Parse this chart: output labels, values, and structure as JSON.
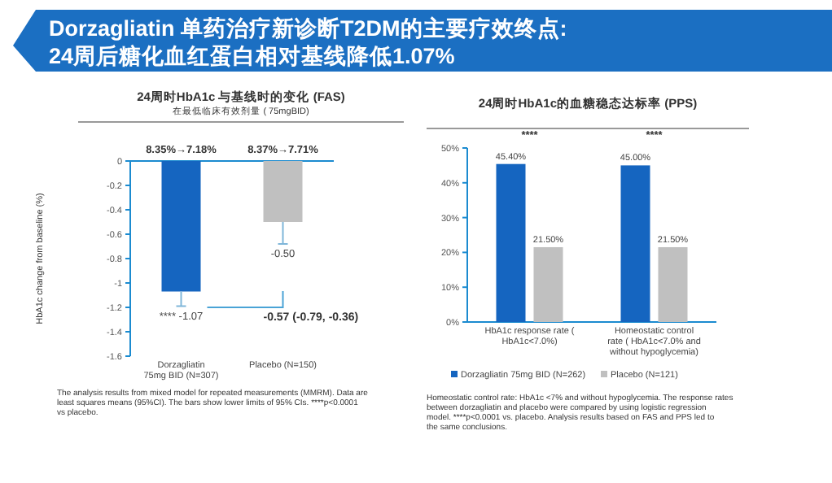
{
  "chart_data": [
    {
      "type": "other",
      "title": "Dorzagliatin 单药治疗新诊断T2DM的主要疗效终点:",
      "subtitle": "24周后糖化血红蛋白相对基线降低1.07%"
    },
    {
      "type": "bar",
      "title": "24周时HbA1c 与基线时的变化 (FAS)",
      "subtitle": "在最低临床有效剂量 ( 75mgBID)",
      "ylabel": "HbA1c change from baseline (%)",
      "categories": [
        "Dorzagliatin 75mg BID (N=307)",
        "Placebo (N=150)"
      ],
      "values": [
        -1.07,
        -0.5
      ],
      "colors": [
        "#1565c0",
        "#c0c0c0"
      ],
      "errors": [
        [
          -1.19,
          -1.07
        ],
        [
          -0.68,
          -0.5
        ]
      ],
      "value_labels": [
        "**** -1.07",
        "-0.50"
      ],
      "ylim": [
        -1.6,
        0
      ],
      "yticks": [
        0,
        -0.2,
        -0.4,
        -0.6,
        -0.8,
        -1,
        -1.2,
        -1.4,
        -1.6
      ],
      "annotations": [
        {
          "text": "8.35%→7.18%",
          "x": "Dorzagliatin 75mg BID (N=307)",
          "y": 0
        },
        {
          "text": "8.37%→7.71%",
          "x": "Placebo (N=150)",
          "y": 0
        },
        "-0.57 (-0.79, -0.36)",
        "The analysis results from mixed model for repeated measurements (MMRM). Data are least squares means (95%CI). The bars show lower limits of 95% CIs. ****p<0.0001 vs placebo."
      ]
    },
    {
      "type": "bar",
      "title": "24周时HbA1c的血糖稳态达标率 (PPS)",
      "categories": [
        "HbA1c response rate ( HbA1c<7.0%)",
        "Homeostatic control rate ( HbA1c<7.0% and without hypoglycemia)"
      ],
      "series": [
        {
          "name": "Dorzagliatin 75mg BID (N=262)",
          "color": "#1565c0",
          "values": [
            45.4,
            45.0
          ],
          "value_labels": [
            "45.40%",
            "45.00%"
          ]
        },
        {
          "name": "Placebo (N=121)",
          "color": "#c0c0c0",
          "values": [
            21.5,
            21.5
          ],
          "value_labels": [
            "21.50%",
            "21.50%"
          ]
        }
      ],
      "ylim": [
        0,
        50
      ],
      "yticks": [
        {
          "value": 0,
          "label": "0%"
        },
        {
          "value": 10,
          "label": "10%"
        },
        {
          "value": 20,
          "label": "20%"
        },
        {
          "value": 30,
          "label": "30%"
        },
        {
          "value": 40,
          "label": "40%"
        },
        {
          "value": 50,
          "label": "50%"
        }
      ],
      "legend": "bottom",
      "annotations": [
        "****",
        "****",
        "Homeostatic control rate: HbA1c <7% and without hypoglycemia. The response rates between dorzagliatin and placebo were compared by using logistic regression model. ****p<0.0001 vs. placebo. Analysis results based on FAS and PPS led to the same conclusions."
      ]
    }
  ]
}
